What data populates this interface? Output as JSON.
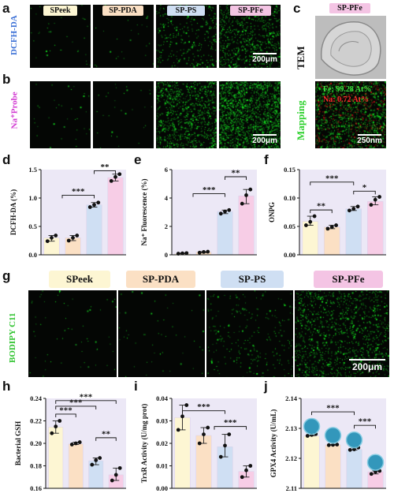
{
  "panel_letters": {
    "a": "a",
    "b": "b",
    "c": "c",
    "d": "d",
    "e": "e",
    "f": "f",
    "g": "g",
    "h": "h",
    "i": "i",
    "j": "j"
  },
  "groups": [
    "SPeek",
    "SP-PDA",
    "SP-PS",
    "SP-PFe"
  ],
  "colors": {
    "SPeek": "#fdf6d3",
    "SP-PDA": "#fbe0c4",
    "SP-PS": "#cfdff3",
    "SP-PFe": "#f7cde6",
    "green": "#3fdc3f",
    "bg_tint": "#ece8f6",
    "pfe_label": "#f4c4e4"
  },
  "row_labels": {
    "dcfh": "DCFH-DA",
    "na_probe": "Na⁺Probe",
    "bodipy": "BODIPY C11"
  },
  "scale_bars": {
    "a": "200μm",
    "b": "200μm",
    "c": "250nm",
    "g": "200μm"
  },
  "tem": {
    "group_label": "SP-PFe",
    "tem_label": "TEM",
    "mapping_label": "Mapping",
    "fe_text": "Fe: 99.28 At%",
    "na_text": "Na: 0.72 At%"
  },
  "chart_data": [
    {
      "panel": "d",
      "type": "bar",
      "categories": [
        "SPeek",
        "SP-PDA",
        "SP-PS",
        "SP-PFe"
      ],
      "values": [
        0.3,
        0.3,
        0.88,
        1.36
      ],
      "points": [
        [
          0.24,
          0.3,
          0.34
        ],
        [
          0.25,
          0.3,
          0.34
        ],
        [
          0.84,
          0.88,
          0.92
        ],
        [
          1.3,
          1.37,
          1.42
        ]
      ],
      "ylabel": "DCFH-DA (%)",
      "ylim": [
        0,
        1.5
      ],
      "yticks": [
        "0.0",
        "0.5",
        "1.0",
        "1.5"
      ],
      "significance": [
        {
          "label": "***"
        },
        {
          "label": "**"
        }
      ]
    },
    {
      "panel": "e",
      "type": "bar",
      "categories": [
        "SPeek",
        "SP-PDA",
        "SP-PS",
        "SP-PFe"
      ],
      "values": [
        0.1,
        0.2,
        3.05,
        4.15
      ],
      "points": [
        [
          0.08,
          0.1,
          0.12
        ],
        [
          0.15,
          0.2,
          0.22
        ],
        [
          2.9,
          3.05,
          3.15
        ],
        [
          3.6,
          4.2,
          4.6
        ]
      ],
      "ylabel": "Na⁺ Fluorescence (%)",
      "ylim": [
        0,
        6
      ],
      "yticks": [
        "0",
        "2",
        "4",
        "6"
      ],
      "significance": [
        {
          "label": "***"
        },
        {
          "label": "**"
        }
      ]
    },
    {
      "panel": "f",
      "type": "bar",
      "categories": [
        "SPeek",
        "SP-PDA",
        "SP-PS",
        "SP-PFe"
      ],
      "values": [
        0.059,
        0.049,
        0.081,
        0.094
      ],
      "points": [
        [
          0.052,
          0.058,
          0.068
        ],
        [
          0.046,
          0.049,
          0.052
        ],
        [
          0.078,
          0.081,
          0.085
        ],
        [
          0.088,
          0.097,
          0.102
        ]
      ],
      "ylabel": "ONPG",
      "ylim": [
        0,
        0.15
      ],
      "yticks": [
        "0.00",
        "0.05",
        "0.10",
        "0.15"
      ],
      "significance": [
        {
          "label": "**"
        },
        {
          "label": "***"
        },
        {
          "label": "*"
        }
      ]
    },
    {
      "panel": "h",
      "type": "bar",
      "categories": [
        "SPeek",
        "SP-PDA",
        "SP-PS",
        "SP-PFe"
      ],
      "values": [
        0.2145,
        0.1995,
        0.1845,
        0.172
      ],
      "points": [
        [
          0.209,
          0.215,
          0.22
        ],
        [
          0.199,
          0.2,
          0.201
        ],
        [
          0.181,
          0.185,
          0.187
        ],
        [
          0.167,
          0.172,
          0.178
        ]
      ],
      "ylabel": "Bacterial GSH",
      "ylim": [
        0.16,
        0.24
      ],
      "yticks": [
        "0.16",
        "0.18",
        "0.20",
        "0.22",
        "0.24"
      ],
      "significance": [
        {
          "label": "***"
        },
        {
          "label": "***"
        },
        {
          "label": "***"
        },
        {
          "label": "**"
        }
      ]
    },
    {
      "panel": "i",
      "type": "bar",
      "categories": [
        "SPeek",
        "SP-PDA",
        "SP-PS",
        "SP-PFe"
      ],
      "values": [
        0.0315,
        0.0235,
        0.0185,
        0.0075
      ],
      "points": [
        [
          0.026,
          0.032,
          0.037
        ],
        [
          0.02,
          0.024,
          0.027
        ],
        [
          0.014,
          0.019,
          0.024
        ],
        [
          0.005,
          0.008,
          0.01
        ]
      ],
      "ylabel": "TrxR Activity (U/mg prot)",
      "ylim": [
        0,
        0.04
      ],
      "yticks": [
        "0.00",
        "0.01",
        "0.02",
        "0.03",
        "0.04"
      ],
      "significance": [
        {
          "label": "***"
        },
        {
          "label": "***"
        }
      ]
    },
    {
      "panel": "j",
      "type": "bar",
      "categories": [
        "SPeek",
        "SP-PDA",
        "SP-PS",
        "SP-PFe"
      ],
      "values": [
        2.1275,
        2.1245,
        2.123,
        2.1155
      ],
      "points": [
        [
          2.1275,
          2.1278,
          2.1281
        ],
        [
          2.1244,
          2.1245,
          2.1246
        ],
        [
          2.1228,
          2.123,
          2.1236
        ],
        [
          2.1148,
          2.1155,
          2.1158
        ]
      ],
      "ylabel": "GPX4 Activity (U/mL)",
      "ylim": [
        2.11,
        2.14
      ],
      "yticks": [
        "2.11",
        "2.12",
        "2.13",
        "2.14"
      ],
      "significance": [
        {
          "label": "***"
        },
        {
          "label": "***"
        }
      ]
    }
  ]
}
